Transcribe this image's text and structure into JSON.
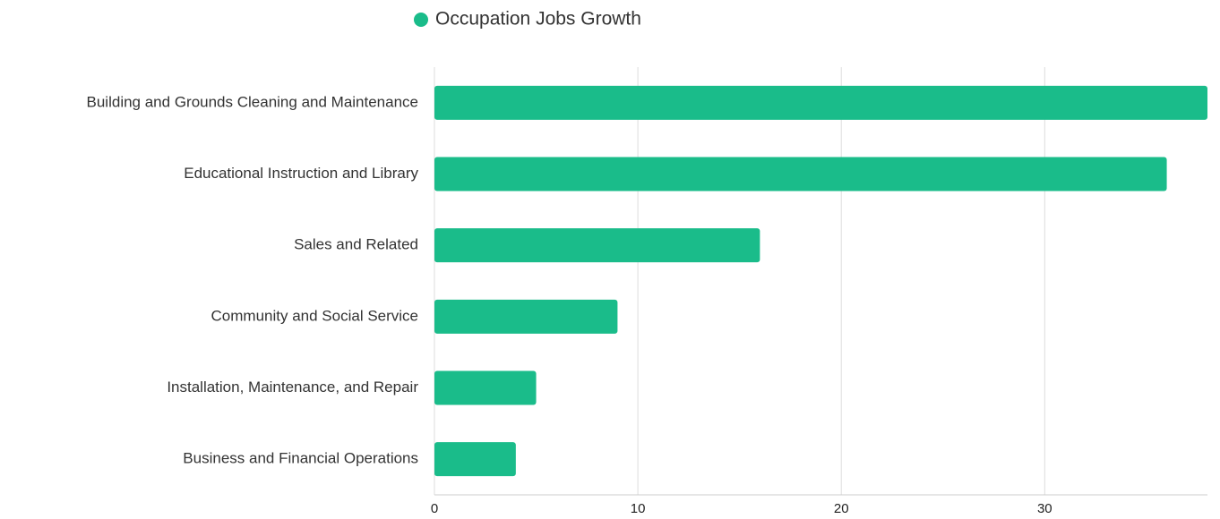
{
  "chart_data": {
    "type": "bar",
    "orientation": "horizontal",
    "categories": [
      "Building and Grounds Cleaning and Maintenance",
      "Educational Instruction and Library",
      "Sales and Related",
      "Community and Social Service",
      "Installation, Maintenance, and Repair",
      "Business and Financial Operations"
    ],
    "series": [
      {
        "name": "Occupation Jobs Growth",
        "color": "#1abc8a",
        "values": [
          38,
          36,
          16,
          9,
          5,
          4
        ]
      }
    ],
    "xlim": [
      0,
      38
    ],
    "xticks": [
      0,
      10,
      20,
      30
    ],
    "grid": true,
    "legend": "top"
  }
}
